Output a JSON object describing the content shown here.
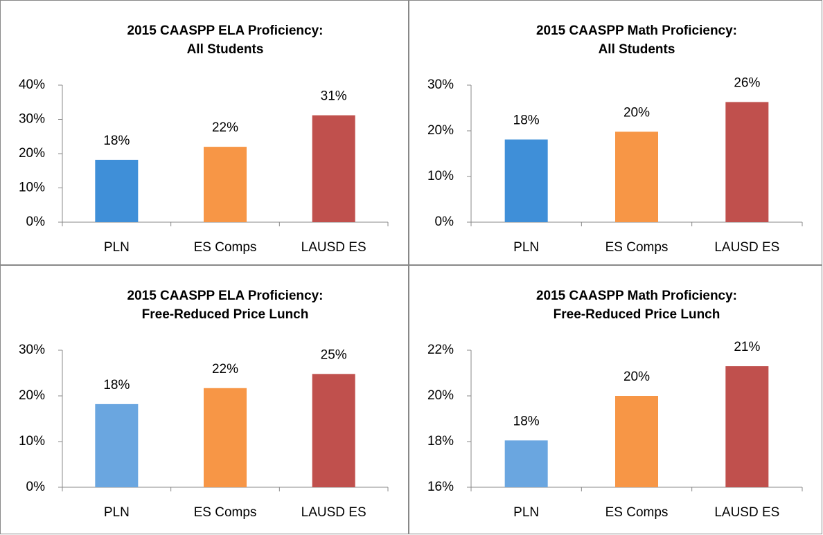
{
  "chart_data": [
    {
      "type": "bar",
      "title": [
        "2015 CAASPP ELA Proficiency:",
        "All Students"
      ],
      "categories": [
        "PLN",
        "ES Comps",
        "LAUSD ES"
      ],
      "values": [
        18.2,
        22,
        31.2
      ],
      "value_labels": [
        "18%",
        "22%",
        "31%"
      ],
      "colors": [
        "#3f8fd8",
        "#f79646",
        "#c0504d"
      ],
      "ylim": [
        0,
        40
      ],
      "yticks": [
        {
          "value": 0,
          "label": "0%"
        },
        {
          "value": 10,
          "label": "10%"
        },
        {
          "value": 20,
          "label": "20%"
        },
        {
          "value": 30,
          "label": "30%"
        },
        {
          "value": 40,
          "label": "40%"
        }
      ]
    },
    {
      "type": "bar",
      "title": [
        "2015 CAASPP Math Proficiency:",
        "All Students"
      ],
      "categories": [
        "PLN",
        "ES Comps",
        "LAUSD ES"
      ],
      "values": [
        18.1,
        19.8,
        26.3
      ],
      "value_labels": [
        "18%",
        "20%",
        "26%"
      ],
      "colors": [
        "#3f8fd8",
        "#f79646",
        "#c0504d"
      ],
      "ylim": [
        0,
        30
      ],
      "yticks": [
        {
          "value": 0,
          "label": "0%"
        },
        {
          "value": 10,
          "label": "10%"
        },
        {
          "value": 20,
          "label": "20%"
        },
        {
          "value": 30,
          "label": "30%"
        }
      ]
    },
    {
      "type": "bar",
      "title": [
        "2015 CAASPP ELA Proficiency:",
        "Free-Reduced Price Lunch"
      ],
      "categories": [
        "PLN",
        "ES Comps",
        "LAUSD ES"
      ],
      "values": [
        18.2,
        21.7,
        24.8
      ],
      "value_labels": [
        "18%",
        "22%",
        "25%"
      ],
      "colors": [
        "#6aa6e0",
        "#f79646",
        "#c0504d"
      ],
      "ylim": [
        0,
        30
      ],
      "yticks": [
        {
          "value": 0,
          "label": "0%"
        },
        {
          "value": 10,
          "label": "10%"
        },
        {
          "value": 20,
          "label": "20%"
        },
        {
          "value": 30,
          "label": "30%"
        }
      ]
    },
    {
      "type": "bar",
      "title": [
        "2015 CAASPP Math Proficiency:",
        "Free-Reduced Price Lunch"
      ],
      "categories": [
        "PLN",
        "ES Comps",
        "LAUSD ES"
      ],
      "values": [
        18.05,
        20,
        21.3
      ],
      "value_labels": [
        "18%",
        "20%",
        "21%"
      ],
      "colors": [
        "#6aa6e0",
        "#f79646",
        "#c0504d"
      ],
      "ylim": [
        16,
        22
      ],
      "yticks": [
        {
          "value": 16,
          "label": "16%"
        },
        {
          "value": 18,
          "label": "18%"
        },
        {
          "value": 20,
          "label": "20%"
        },
        {
          "value": 22,
          "label": "22%"
        }
      ]
    }
  ]
}
